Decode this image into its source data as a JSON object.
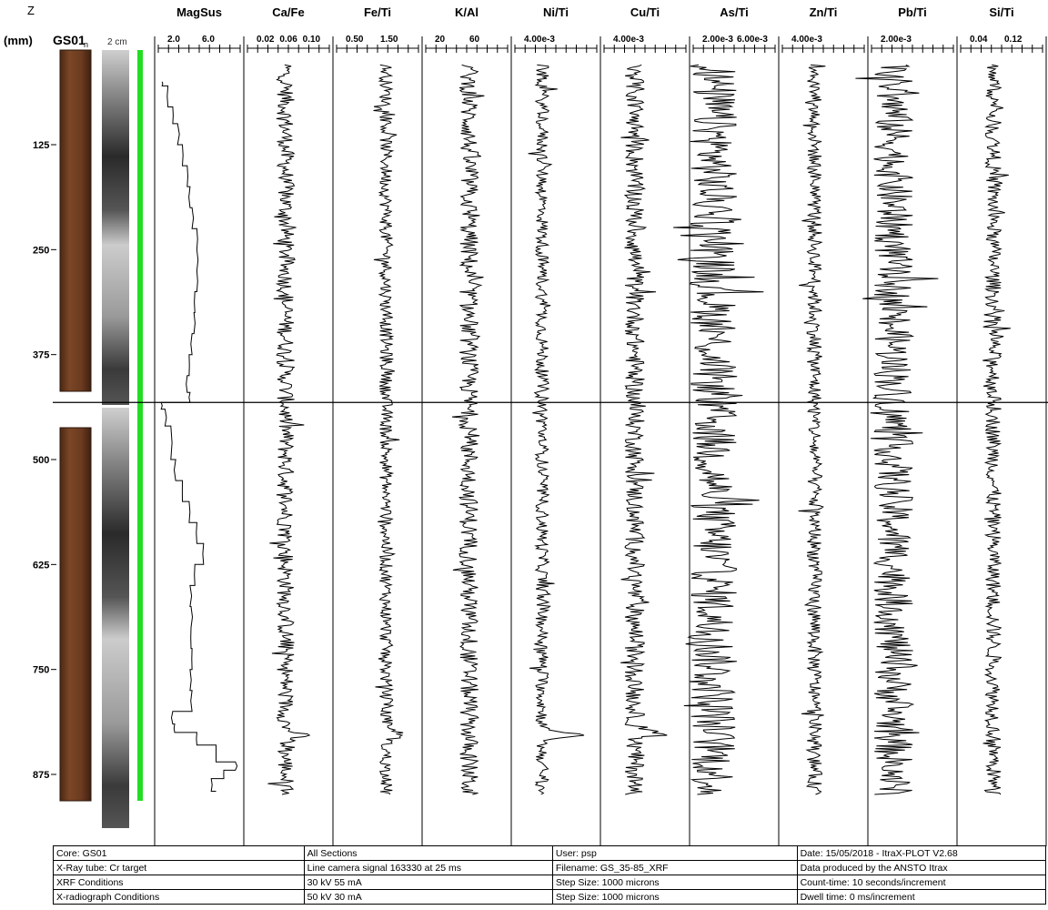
{
  "header": {
    "z_label": "Z",
    "unit_label": "(mm)",
    "core_label": "GS01",
    "core_sub": "n",
    "scale_label": "2 cm"
  },
  "chart_data": {
    "type": "line",
    "orientation": "depth-vertical",
    "depth_axis": {
      "label": "Z (mm)",
      "range": [
        20,
        925
      ],
      "ticks": [
        125,
        250,
        375,
        500,
        625,
        750,
        875
      ]
    },
    "section_break_depth": 432,
    "tracks": [
      {
        "name": "MagSus",
        "tick_labels": [
          "2.0",
          "6.0"
        ],
        "range": [
          0.5,
          9.0
        ],
        "depths": [
          25,
          50,
          55,
          80,
          100,
          125,
          150,
          175,
          200,
          225,
          250,
          275,
          300,
          325,
          350,
          375,
          400,
          420,
          432,
          440,
          460,
          500,
          525,
          550,
          575,
          600,
          625,
          650,
          675,
          700,
          725,
          750,
          775,
          800,
          815,
          825,
          840,
          860,
          870,
          880,
          895
        ],
        "values": [
          null,
          0.9,
          1.5,
          2.0,
          2.5,
          3.0,
          3.5,
          3.8,
          4.0,
          4.5,
          4.5,
          4.5,
          4.3,
          4.2,
          4.0,
          3.7,
          3.5,
          3.8,
          0.8,
          1.2,
          1.8,
          2.3,
          3.0,
          3.7,
          4.5,
          5.2,
          4.3,
          3.8,
          3.9,
          3.9,
          4.0,
          3.8,
          4.0,
          2.0,
          2.2,
          4.5,
          6.5,
          8.5,
          7.3,
          6.0,
          6.5
        ]
      },
      {
        "name": "Ca/Fe",
        "tick_labels": [
          "0.02",
          "0.06",
          "0.10"
        ],
        "range": [
          0.0,
          0.15
        ],
        "mean": 0.07,
        "variability": 0.01,
        "peak": {
          "depth": 828,
          "value": 0.1
        }
      },
      {
        "name": "Fe/Ti",
        "tick_labels": [
          "0.50",
          "1.50"
        ],
        "range": [
          0.0,
          2.4
        ],
        "mean": 1.45,
        "variability": 0.12,
        "peak": {
          "depth": 828,
          "value": 2.0
        }
      },
      {
        "name": "K/Al",
        "tick_labels": [
          "20",
          "60"
        ],
        "range": [
          0,
          110
        ],
        "mean": 58,
        "variability": 8
      },
      {
        "name": "Ni/Ti",
        "tick_labels": [
          "4.00e-3"
        ],
        "range": [
          0.0,
          0.012
        ],
        "mean": 0.004,
        "variability": 0.0006,
        "peak": {
          "depth": 828,
          "value": 0.0095
        }
      },
      {
        "name": "Cu/Ti",
        "tick_labels": [
          "4.00e-3"
        ],
        "range": [
          0.0,
          0.012
        ],
        "mean": 0.0045,
        "variability": 0.0009,
        "peak": {
          "depth": 825,
          "value": 0.0085
        }
      },
      {
        "name": "As/Ti",
        "tick_labels": [
          "2.00e-3",
          "6.00e-3"
        ],
        "range": [
          0.0,
          0.01
        ],
        "mean": 0.0025,
        "variability": 0.0018
      },
      {
        "name": "Zn/Ti",
        "tick_labels": [
          "4.00e-3"
        ],
        "range": [
          0.0,
          0.014
        ],
        "mean": 0.0055,
        "variability": 0.0008
      },
      {
        "name": "Pb/Ti",
        "tick_labels": [
          "2.00e-3"
        ],
        "range": [
          0.0,
          0.006
        ],
        "mean": 0.0016,
        "variability": 0.0009
      },
      {
        "name": "Si/Ti",
        "tick_labels": [
          "0.04",
          "0.12"
        ],
        "range": [
          0.0,
          0.2
        ],
        "mean": 0.08,
        "variability": 0.012
      }
    ]
  },
  "footer": {
    "rows": [
      [
        "Core: GS01",
        "All Sections",
        "User: psp",
        "Date: 15/05/2018 - ItraX-PLOT V2.68"
      ],
      [
        "X-Ray tube: Cr target",
        "Line camera signal 163330 at 25 ms",
        "Filename: GS_35-85_XRF",
        "Data produced by the ANSTO Itrax"
      ],
      [
        "XRF Conditions",
        "30 kV 55 mA",
        "Step Size: 1000 microns",
        "Count-time: 10 seconds/increment"
      ],
      [
        "X-radiograph Conditions",
        "50 kV 30 mA",
        "Step Size: 1000 microns",
        "Dwell time: 0 ms/increment"
      ]
    ]
  },
  "colors": {
    "core_wood": "#6b3a1f",
    "xray_dark": "#1a1a1a",
    "marker_bar": "#22dd22",
    "line": "#000000"
  }
}
